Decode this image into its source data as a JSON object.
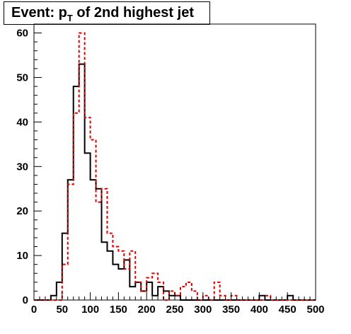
{
  "title": {
    "prefix": "Event: p",
    "subscript": "T",
    "suffix": " of 2nd highest jet"
  },
  "chart_data": {
    "type": "histogram",
    "title": "Event: p_T of 2nd highest jet",
    "xlabel": "",
    "ylabel": "",
    "xlim": [
      0,
      500
    ],
    "ylim": [
      0,
      62
    ],
    "bin_width": 10,
    "x_ticks": [
      0,
      50,
      100,
      150,
      200,
      250,
      300,
      350,
      400,
      450,
      500
    ],
    "y_ticks": [
      0,
      10,
      20,
      30,
      40,
      50,
      60
    ],
    "grid": false,
    "legend": "none",
    "series": [
      {
        "style": "solid",
        "color": "#000000",
        "bin_edges_start": 0,
        "values": [
          0,
          0,
          0,
          1,
          4,
          15,
          27,
          48,
          53,
          33,
          27,
          25,
          13,
          11,
          8,
          7,
          9,
          3,
          4,
          2,
          4,
          1,
          3,
          2,
          1,
          1,
          0,
          0,
          0,
          0,
          0,
          0,
          0,
          0,
          0,
          0,
          0,
          0,
          0,
          0,
          1,
          0,
          0,
          0,
          0,
          1,
          0,
          0,
          0,
          0
        ]
      },
      {
        "style": "dashed",
        "color": "#dd0000",
        "bin_edges_start": 0,
        "values": [
          0,
          0,
          0,
          0,
          0,
          8,
          26,
          42,
          60,
          41,
          36,
          22,
          25,
          15,
          12,
          11,
          7,
          11,
          4,
          2,
          5,
          6,
          4,
          0,
          2,
          1,
          3,
          4,
          2,
          0,
          1,
          0,
          4,
          1,
          0,
          1,
          0,
          0,
          0,
          0,
          0,
          1,
          0,
          0,
          0,
          0,
          0,
          0,
          0,
          0
        ]
      }
    ]
  }
}
